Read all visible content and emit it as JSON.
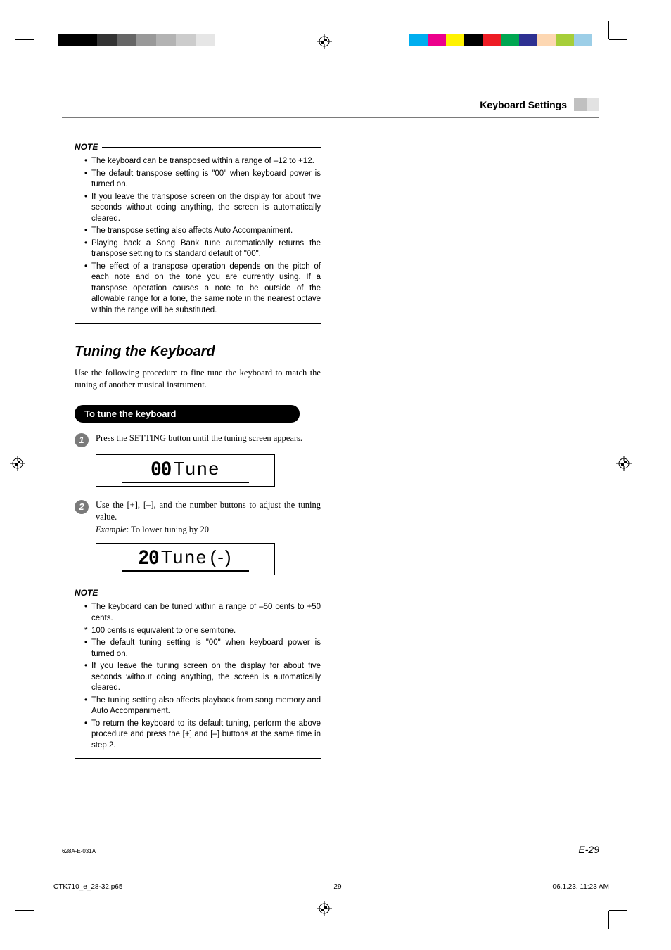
{
  "colorbars": {
    "left": [
      "#000000",
      "#000000",
      "#333333",
      "#666666",
      "#999999",
      "#b3b3b3",
      "#cccccc",
      "#e6e6e6"
    ],
    "right": [
      "#00aeef",
      "#ec008c",
      "#fff200",
      "#000000",
      "#ed1c24",
      "#00a651",
      "#2e3192",
      "#fdd7b2",
      "#a6ce39",
      "#9ccee7"
    ]
  },
  "header": {
    "title": "Keyboard Settings",
    "box_colors": [
      "#c0c0c0",
      "#e2e2e2"
    ]
  },
  "note1": {
    "label": "NOTE",
    "items": [
      "The keyboard can be transposed within a range of –12 to +12.",
      "The default transpose setting is \"00\" when keyboard power is turned on.",
      "If you leave the transpose screen on the display for about five seconds without doing anything, the screen is automatically cleared.",
      "The transpose setting also affects Auto Accompaniment.",
      "Playing back a Song Bank tune automatically returns the transpose setting to its standard default of \"00\".",
      "The effect of a transpose operation depends on the pitch of each note and on the tone you are currently using. If a transpose operation causes a note to be outside of the allowable range for a tone, the same note in the nearest octave within the range will be substituted."
    ]
  },
  "section": {
    "title": "Tuning the Keyboard",
    "intro": "Use the following procedure to fine tune the keyboard to match the tuning of another musical instrument."
  },
  "pill": {
    "label": "To tune the keyboard"
  },
  "step1": {
    "num": "1",
    "text": "Press the SETTING button until the tuning screen appears.",
    "lcd_value": "00",
    "lcd_label": "Tune"
  },
  "step2": {
    "num": "2",
    "text": "Use the [+], [–], and the number buttons to adjust the tuning value.",
    "example_label": "Example",
    "example_text": ": To lower tuning by 20",
    "lcd_value": "20",
    "lcd_label": "Tune",
    "lcd_suffix": "(-)"
  },
  "note2": {
    "label": "NOTE",
    "items": [
      "The keyboard can be tuned within a range of –50 cents to +50 cents.",
      "The default tuning setting is \"00\" when keyboard power is turned on.",
      "If you leave the tuning screen on the display for about five seconds without doing anything, the screen is automatically cleared.",
      "The tuning setting also affects playback from song memory and Auto Accompaniment.",
      "To return the keyboard to its default tuning, perform the above procedure and press the [+] and [–] buttons at the same time in step 2."
    ],
    "sub_item": "100 cents is equivalent to one semitone."
  },
  "footer": {
    "code": "628A-E-031A",
    "page": "E-29"
  },
  "printinfo": {
    "file": "CTK710_e_28-32.p65",
    "page": "29",
    "timestamp": "06.1.23, 11:23 AM"
  }
}
